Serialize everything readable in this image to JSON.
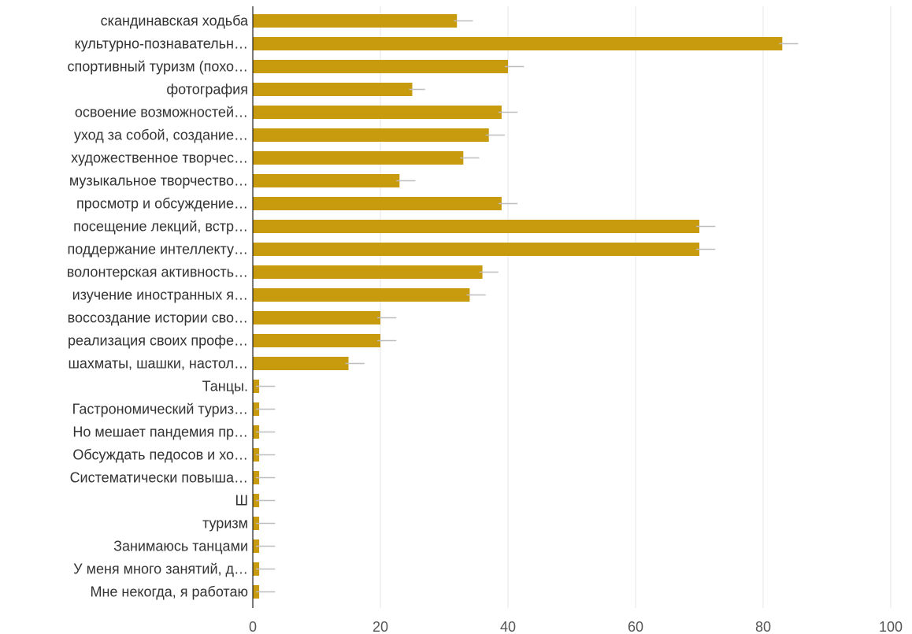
{
  "chart_data": {
    "type": "bar",
    "orientation": "horizontal",
    "categories": [
      "скандинавская ходьба",
      "культурно-познавательн…",
      "спортивный туризм (похо…",
      "фотография",
      "освоение возможностей…",
      "уход за собой, создание…",
      "художественное творчес…",
      "музыкальное творчество…",
      "просмотр и обсуждение…",
      "посещение лекций, встр…",
      "поддержание интеллекту…",
      "волонтерская активность…",
      "изучение иностранных я…",
      "воссоздание истории сво…",
      "реализация своих профе…",
      "шахматы, шашки, настол…",
      "Танцы.",
      "Гастрономический туриз…",
      "Но мешает пандемия пр…",
      "Обсуждать педосов и хо…",
      "Систематически повыша…",
      "Ш",
      "туризм",
      "Занимаюсь танцами",
      "У меня много занятий, д…",
      "Мне некогда, я работаю"
    ],
    "values": [
      32,
      83,
      40,
      25,
      39,
      37,
      33,
      23,
      39,
      70,
      70,
      36,
      34,
      20,
      20,
      15,
      1,
      1,
      1,
      1,
      1,
      1,
      1,
      1,
      1,
      1
    ],
    "error_upper": [
      34.5,
      85.5,
      42.5,
      27,
      41.5,
      39.5,
      35.5,
      25.5,
      41.5,
      72.5,
      72.5,
      38.5,
      36.5,
      22.5,
      22.5,
      17.5,
      3.5,
      3.5,
      3.5,
      3.5,
      3.5,
      3.5,
      3.5,
      3.5,
      3.5,
      3.5
    ],
    "error_lower": [
      31.5,
      82.5,
      39.5,
      24.5,
      38.5,
      36.5,
      32.5,
      22.5,
      38.5,
      69.5,
      69.5,
      35.5,
      33.5,
      19.5,
      19.5,
      14.5,
      0.5,
      0.5,
      0.5,
      0.5,
      0.5,
      0.5,
      0.5,
      0.5,
      0.5,
      0.5
    ],
    "xlim": [
      0,
      100
    ],
    "xticks": [
      0,
      20,
      40,
      60,
      80,
      100
    ],
    "grid": true,
    "bar_color": "#c89a0e",
    "error_color": "#bdbdbd",
    "title": "",
    "xlabel": "",
    "ylabel": ""
  }
}
